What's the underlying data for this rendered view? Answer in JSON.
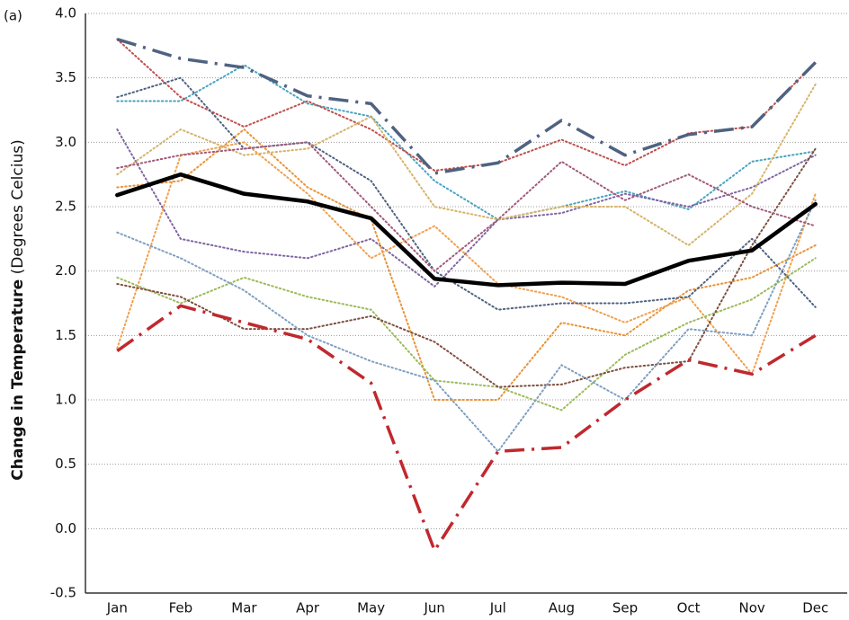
{
  "chart_data": {
    "type": "line",
    "annotation": "(a)",
    "y_label": "Change in Temperature",
    "y_label_unit": "(Degrees Celcius)",
    "categories": [
      "Jan",
      "Feb",
      "Mar",
      "Apr",
      "May",
      "Jun",
      "Jul",
      "Aug",
      "Sep",
      "Oct",
      "Nov",
      "Dec"
    ],
    "ylim": [
      -0.5,
      4.0
    ],
    "yticks": [
      -0.5,
      {
        "value": 0,
        "label": "0.0"
      },
      0.5,
      {
        "value": 1,
        "label": "1.0"
      },
      1.5,
      {
        "value": 2,
        "label": "2.0"
      },
      2.5,
      {
        "value": 3,
        "label": "3.0"
      },
      3.5,
      {
        "value": 4,
        "label": "4.0"
      }
    ],
    "grid": true,
    "series": [
      {
        "color": "#4aa3c0",
        "style": "dotted",
        "values": [
          3.32,
          3.32,
          3.6,
          3.3,
          3.2,
          2.7,
          2.4,
          2.5,
          2.62,
          2.48,
          2.85,
          2.93
        ]
      },
      {
        "color": "#c0504d",
        "style": "dotted",
        "values": [
          3.8,
          3.35,
          3.12,
          3.32,
          3.1,
          2.78,
          2.84,
          3.02,
          2.82,
          3.07,
          3.12,
          3.62
        ]
      },
      {
        "color": "#8064a2",
        "style": "dotted",
        "values": [
          3.1,
          2.25,
          2.15,
          2.1,
          2.25,
          1.88,
          2.4,
          2.45,
          2.6,
          2.5,
          2.65,
          2.9
        ]
      },
      {
        "color": "#e8943a",
        "style": "dotted",
        "values": [
          2.65,
          2.7,
          3.1,
          2.65,
          2.4,
          1.0,
          1.0,
          1.6,
          1.5,
          1.85,
          1.95,
          2.2
        ]
      },
      {
        "color": "#f0a050",
        "style": "dotted",
        "values": [
          1.4,
          2.9,
          3.0,
          2.6,
          2.1,
          2.35,
          1.9,
          1.8,
          1.6,
          1.8,
          1.2,
          2.6
        ]
      },
      {
        "color": "#9bbb59",
        "style": "dotted",
        "values": [
          1.95,
          1.75,
          1.95,
          1.8,
          1.7,
          1.15,
          1.1,
          0.92,
          1.35,
          1.6,
          1.78,
          2.1
        ]
      },
      {
        "color": "#7f4f3f",
        "style": "dotted",
        "values": [
          1.9,
          1.8,
          1.55,
          1.55,
          1.65,
          1.45,
          1.1,
          1.12,
          1.25,
          1.3,
          2.2,
          2.95
        ]
      },
      {
        "color": "#7f9fc0",
        "style": "dotted",
        "values": [
          2.3,
          2.1,
          1.85,
          1.5,
          1.3,
          1.15,
          0.6,
          1.27,
          1.0,
          1.55,
          1.5,
          2.55
        ]
      },
      {
        "color": "#4f6281",
        "style": "dotted",
        "values": [
          3.35,
          3.5,
          2.95,
          3.0,
          2.7,
          2.0,
          1.7,
          1.75,
          1.75,
          1.8,
          2.25,
          1.72
        ]
      },
      {
        "color": "#d6b36a",
        "style": "dotted",
        "values": [
          2.75,
          3.1,
          2.9,
          2.95,
          3.2,
          2.5,
          2.4,
          2.5,
          2.5,
          2.2,
          2.6,
          3.45
        ]
      },
      {
        "color": "#a05a7a",
        "style": "dotted",
        "values": [
          2.8,
          2.9,
          2.95,
          3.0,
          2.5,
          2.0,
          2.4,
          2.85,
          2.55,
          2.75,
          2.5,
          2.35
        ]
      },
      {
        "color": "#4f6281",
        "style": "dashed",
        "values": [
          3.8,
          3.65,
          3.58,
          3.36,
          3.3,
          2.76,
          2.84,
          3.17,
          2.9,
          3.06,
          3.12,
          3.62
        ]
      },
      {
        "color": "#c0282d",
        "style": "dashed",
        "values": [
          1.38,
          1.73,
          1.6,
          1.47,
          1.13,
          -0.17,
          0.6,
          0.63,
          1.0,
          1.31,
          1.2,
          1.5
        ]
      },
      {
        "color": "#000000",
        "style": "solid",
        "values": [
          2.59,
          2.75,
          2.6,
          2.54,
          2.41,
          1.94,
          1.89,
          1.91,
          1.9,
          2.08,
          2.16,
          2.52
        ]
      }
    ]
  }
}
